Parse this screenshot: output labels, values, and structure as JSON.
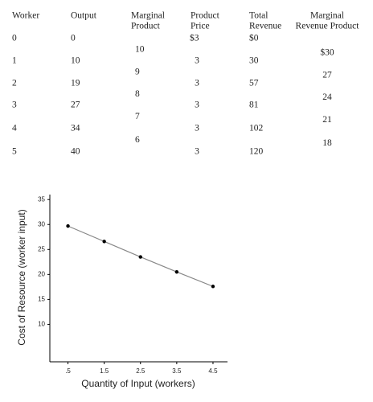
{
  "table": {
    "headers": [
      [
        "Worker"
      ],
      [
        "Output"
      ],
      [
        "Marginal",
        "Product"
      ],
      [
        "Product",
        "Price"
      ],
      [
        "Total",
        "Revenue"
      ],
      [
        "Marginal",
        "Revenue Product"
      ]
    ],
    "rows": [
      [
        "0",
        "0",
        "$3",
        "$0"
      ],
      [
        "1",
        "10",
        "3",
        "30"
      ],
      [
        "2",
        "19",
        "3",
        "57"
      ],
      [
        "3",
        "27",
        "3",
        "81"
      ],
      [
        "4",
        "34",
        "3",
        "102"
      ],
      [
        "5",
        "40",
        "3",
        "120"
      ]
    ],
    "between": [
      [
        "10",
        "$30"
      ],
      [
        "9",
        "27"
      ],
      [
        "8",
        "24"
      ],
      [
        "7",
        "21"
      ],
      [
        "6",
        "18"
      ]
    ]
  },
  "chart_data": {
    "type": "line",
    "x_label": "Quantity of Input (workers)",
    "y_label": "Cost of Resource (worker input)",
    "x": [
      0.5,
      1.5,
      2.5,
      3.5,
      4.5
    ],
    "values": [
      29.7,
      26.6,
      23.5,
      20.5,
      17.6
    ],
    "color": "#888888",
    "marker_color": "#000000",
    "xlim": [
      0,
      4.9
    ],
    "ylim": [
      2.5,
      36
    ],
    "xticks": [
      {
        "value": 0.5,
        "label": ".5"
      },
      1.5,
      2.5,
      3.5,
      4.5
    ],
    "yticks": [
      10,
      15,
      20,
      25,
      30,
      35
    ],
    "grid": false
  }
}
